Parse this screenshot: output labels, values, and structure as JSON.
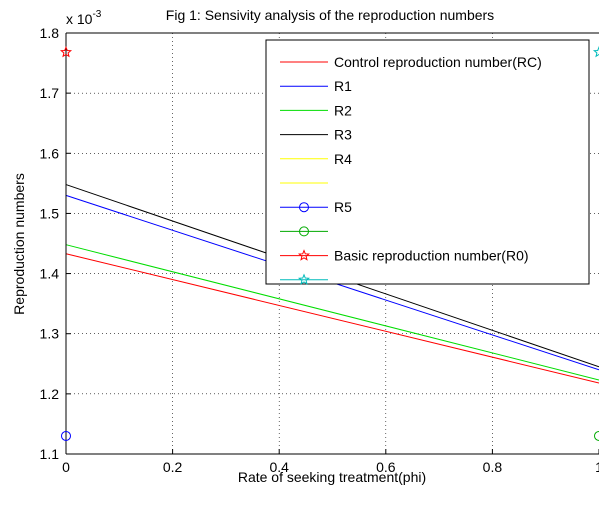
{
  "chart_data": {
    "type": "line",
    "title": "Fig 1: Sensivity analysis of the reproduction numbers",
    "xlabel": "Rate of seeking treatment(phi)",
    "ylabel": "Reproduction numbers",
    "scale_exponent_label": "x 10",
    "scale_exponent_power": "-3",
    "xlim": [
      0,
      1
    ],
    "ylim": [
      1.1,
      1.8
    ],
    "x_ticks": [
      "0",
      "0.2",
      "0.4",
      "0.6",
      "0.8",
      "1"
    ],
    "y_ticks": [
      "1.1",
      "1.2",
      "1.3",
      "1.4",
      "1.5",
      "1.6",
      "1.7",
      "1.8"
    ],
    "grid": "dotted",
    "legend_position": "top-right",
    "series": [
      {
        "name": "Control reproduction number(RC)",
        "color": "#ff0000",
        "marker": "none",
        "x": [
          0,
          1
        ],
        "y": [
          1.433,
          1.218
        ]
      },
      {
        "name": "R1",
        "color": "#0000ff",
        "marker": "none",
        "x": [
          0,
          1
        ],
        "y": [
          1.53,
          1.24
        ]
      },
      {
        "name": "R2",
        "color": "#00dd00",
        "marker": "none",
        "x": [
          0,
          1
        ],
        "y": [
          1.448,
          1.223
        ]
      },
      {
        "name": "R3",
        "color": "#000000",
        "marker": "none",
        "x": [
          0,
          1
        ],
        "y": [
          1.548,
          1.245
        ]
      },
      {
        "name": "R4",
        "color": "#ffff00",
        "marker": "none",
        "x": [],
        "y": []
      },
      {
        "name": "",
        "color": "#ffff00",
        "marker": "none",
        "x": [],
        "y": []
      },
      {
        "name": "R5",
        "color": "#0000ff",
        "marker": "circle",
        "x": [
          0
        ],
        "y": [
          1.13
        ]
      },
      {
        "name": "",
        "color": "#00aa00",
        "marker": "circle",
        "x": [
          1
        ],
        "y": [
          1.13
        ]
      },
      {
        "name": "Basic reproduction number(R0)",
        "color": "#ff0000",
        "marker": "star",
        "x": [
          0
        ],
        "y": [
          1.768
        ]
      },
      {
        "name": "",
        "color": "#00bbbb",
        "marker": "star",
        "x": [
          1
        ],
        "y": [
          1.768
        ]
      }
    ]
  }
}
